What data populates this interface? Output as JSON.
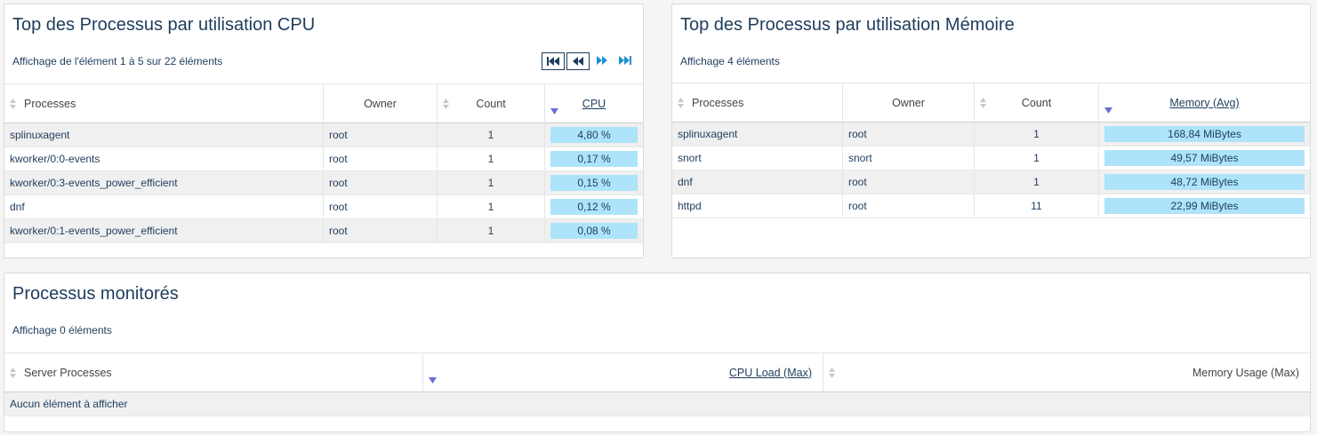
{
  "cpu_panel": {
    "title": "Top des Processus par utilisation CPU",
    "info": "Affichage de l'élément 1 à 5 sur 22 éléments",
    "headers": [
      "Processes",
      "Owner",
      "Count",
      "CPU"
    ],
    "rows": [
      [
        "splinuxagent",
        "root",
        "1",
        "4,80 %"
      ],
      [
        "kworker/0:0-events",
        "root",
        "1",
        "0,17 %"
      ],
      [
        "kworker/0:3-events_power_efficient",
        "root",
        "1",
        "0,15 %"
      ],
      [
        "dnf",
        "root",
        "1",
        "0,12 %"
      ],
      [
        "kworker/0:1-events_power_efficient",
        "root",
        "1",
        "0,08 %"
      ]
    ]
  },
  "memory_panel": {
    "title": "Top des Processus par utilisation Mémoire",
    "info": "Affichage 4 éléments",
    "headers": [
      "Processes",
      "Owner",
      "Count",
      "Memory (Avg)"
    ],
    "rows": [
      [
        "splinuxagent",
        "root",
        "1",
        "168,84 MiBytes"
      ],
      [
        "snort",
        "snort",
        "1",
        "49,57 MiBytes"
      ],
      [
        "dnf",
        "root",
        "1",
        "48,72 MiBytes"
      ],
      [
        "httpd",
        "root",
        "11",
        "22,99 MiBytes"
      ]
    ]
  },
  "monitored_panel": {
    "title": "Processus monitorés",
    "info": "Affichage 0 éléments",
    "headers": [
      "Server Processes",
      "CPU Load (Max)",
      "Memory Usage (Max)"
    ],
    "empty": "Aucun élément à afficher"
  }
}
